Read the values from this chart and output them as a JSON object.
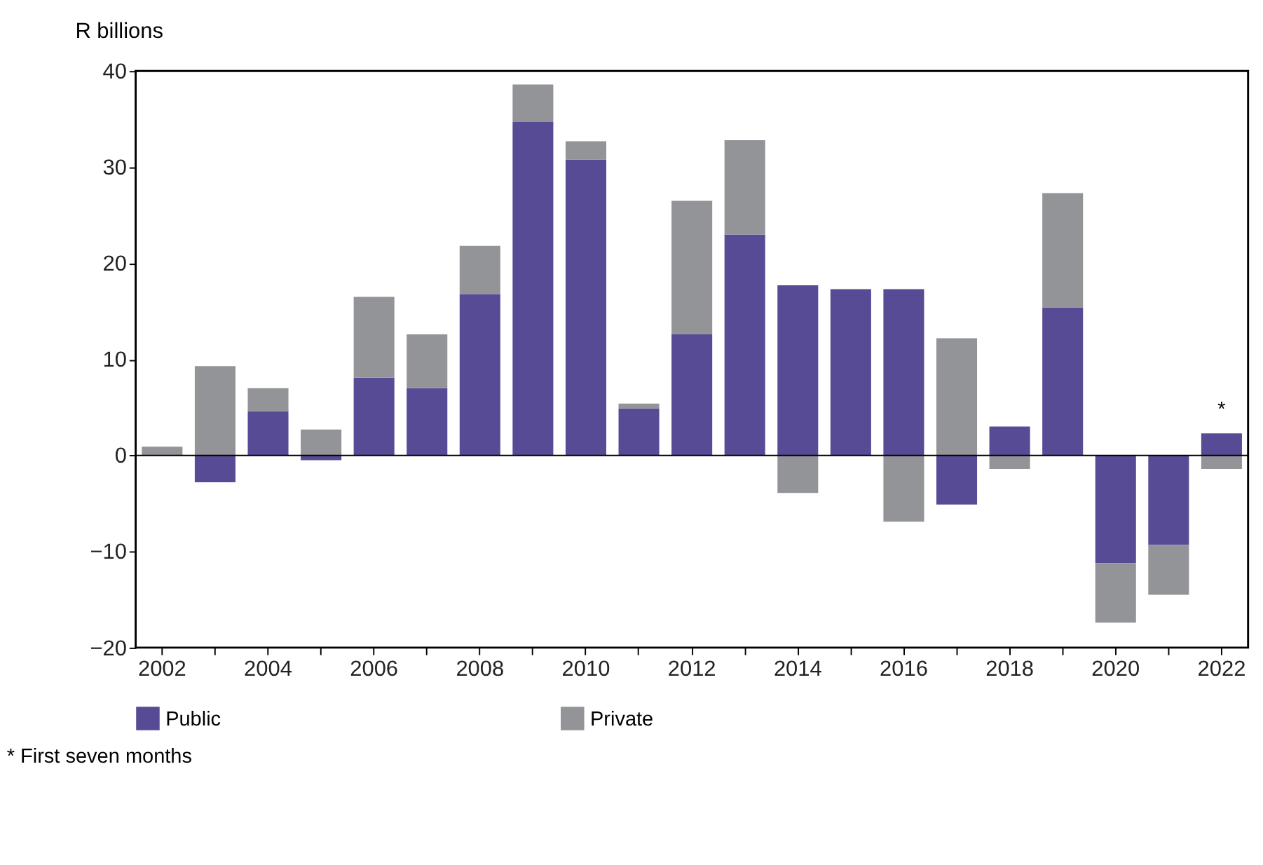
{
  "chart_data": {
    "type": "bar",
    "stacked": true,
    "ylabel": "R billions",
    "categories": [
      "2002",
      null,
      "2004",
      null,
      "2006",
      null,
      "2008",
      null,
      "2010",
      null,
      "2012",
      null,
      "2014",
      null,
      "2016",
      null,
      "2018",
      null,
      "2020",
      null,
      "2022"
    ],
    "series": [
      {
        "name": "Public",
        "color": "#574b96",
        "values": [
          0,
          -2.8,
          4.6,
          -0.5,
          8.1,
          7.0,
          16.8,
          34.7,
          30.8,
          4.9,
          12.6,
          23.0,
          17.7,
          17.3,
          17.3,
          -5.1,
          3.0,
          15.4,
          -11.2,
          -9.3,
          2.3
        ]
      },
      {
        "name": "Private",
        "color": "#939498",
        "values": [
          0.9,
          9.3,
          2.4,
          2.7,
          8.4,
          5.6,
          5.0,
          3.9,
          1.9,
          0.5,
          13.9,
          9.8,
          -3.9,
          null,
          -6.9,
          12.2,
          -1.4,
          11.9,
          -6.2,
          -5.2,
          -1.4
        ]
      }
    ],
    "ylim": [
      -20,
      40
    ],
    "yticks": [
      -20,
      -10,
      0,
      10,
      20,
      30,
      40
    ],
    "ref_lines": [
      {
        "axis": "y",
        "value": 0
      }
    ],
    "grid": false,
    "legend": "bottom",
    "annotations": [
      {
        "text": "*",
        "x": "2022",
        "y": 2.3
      },
      "* First seven months"
    ]
  }
}
